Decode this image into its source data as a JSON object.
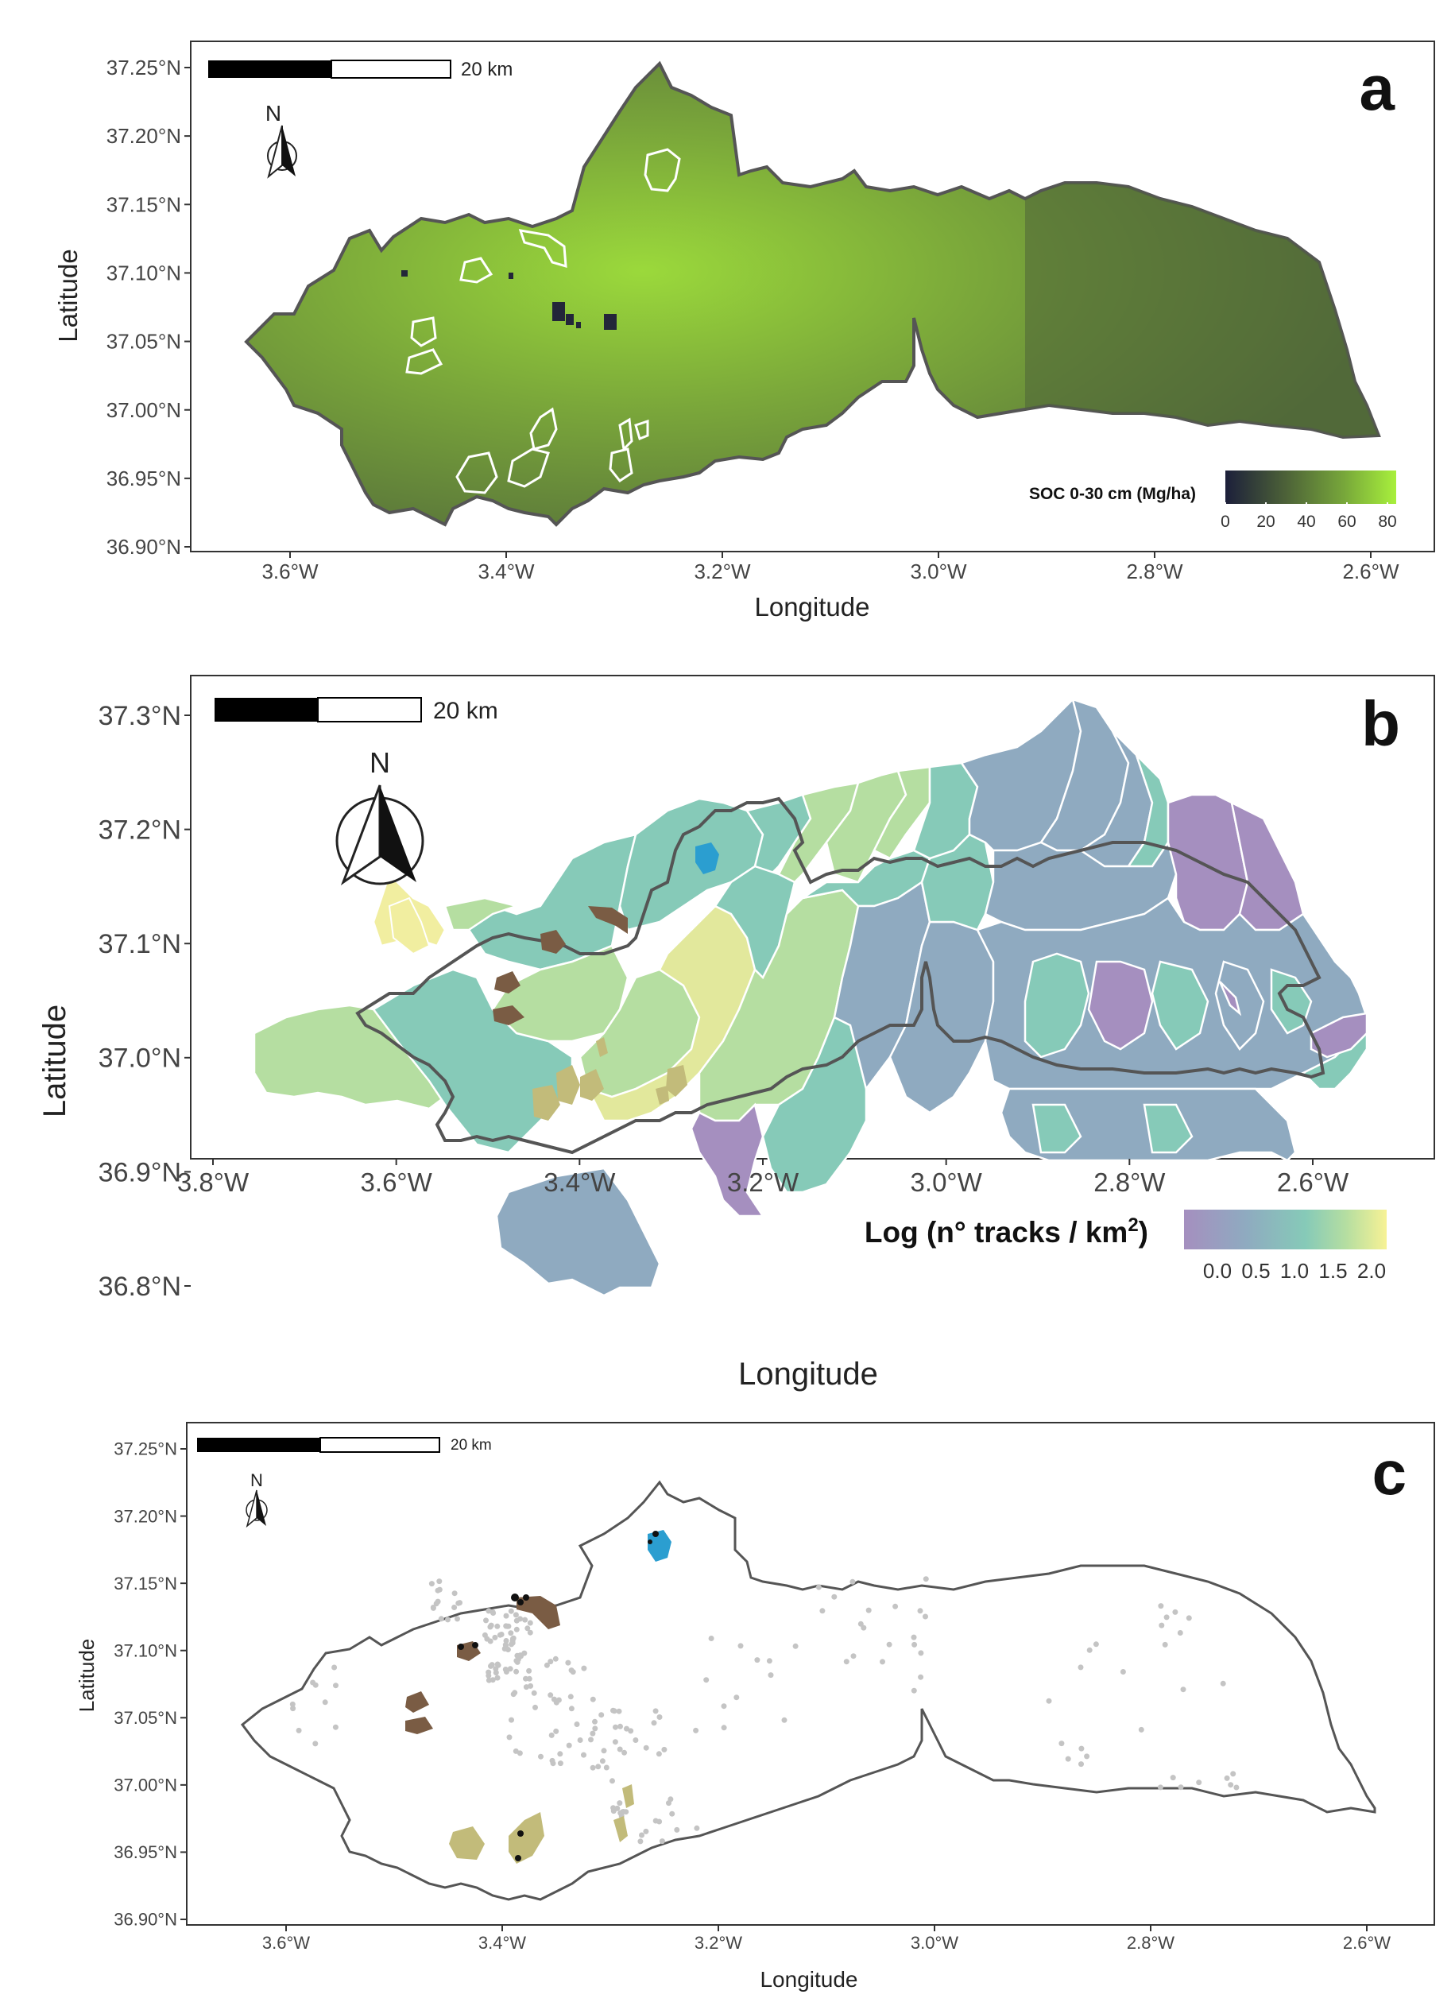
{
  "panel_a": {
    "letter": "a",
    "scale_label": "20 km",
    "north_label": "N",
    "xlabel": "Longitude",
    "ylabel": "Latitude",
    "x_ticks": [
      "3.6°W",
      "3.4°W",
      "3.2°W",
      "3.0°W",
      "2.8°W",
      "2.6°W"
    ],
    "y_ticks": [
      "37.25°N",
      "37.20°N",
      "37.15°N",
      "37.10°N",
      "37.05°N",
      "37.00°N",
      "36.95°N",
      "36.90°N"
    ],
    "legend_title": "SOC 0-30 cm (Mg/ha)",
    "legend_ticks": [
      "0",
      "20",
      "40",
      "60",
      "80"
    ],
    "colors": {
      "low": "#1c1f3a",
      "mid": "#5c7a38",
      "high": "#a8f03c",
      "outline": "#555555"
    }
  },
  "panel_b": {
    "letter": "b",
    "scale_label": "20 km",
    "north_label": "N",
    "xlabel": "Longitude",
    "ylabel": "Latitude",
    "x_ticks": [
      "3.8°W",
      "3.6°W",
      "3.4°W",
      "3.2°W",
      "3.0°W",
      "2.8°W",
      "2.6°W"
    ],
    "y_ticks": [
      "37.3°N",
      "37.2°N",
      "37.1°N",
      "37.0°N",
      "36.9°N",
      "36.8°N"
    ],
    "legend_title_main": "Log (n° tracks / km",
    "legend_title_sup": "2",
    "legend_title_end": ")",
    "legend_ticks": [
      "0.0",
      "0.5",
      "1.0",
      "1.5",
      "2.0"
    ],
    "colors": {
      "purple": "#a58fbf",
      "blue": "#8faac0",
      "teal": "#86cab8",
      "green": "#b5dea1",
      "yellow": "#f1eea0",
      "outline": "#555555"
    }
  },
  "panel_c": {
    "letter": "c",
    "scale_label": "20 km",
    "north_label": "N",
    "xlabel": "Longitude",
    "ylabel": "Latitude",
    "x_ticks": [
      "3.6°W",
      "3.4°W",
      "3.2°W",
      "3.0°W",
      "2.8°W",
      "2.6°W"
    ],
    "y_ticks": [
      "37.25°N",
      "37.20°N",
      "37.15°N",
      "37.10°N",
      "37.05°N",
      "37.00°N",
      "36.95°N",
      "36.90°N"
    ],
    "colors": {
      "points": "#c4c4c4",
      "brown": "#7a5c44",
      "blue": "#2b9ed0",
      "khaki": "#c2bb7a",
      "outline": "#555555"
    }
  }
}
